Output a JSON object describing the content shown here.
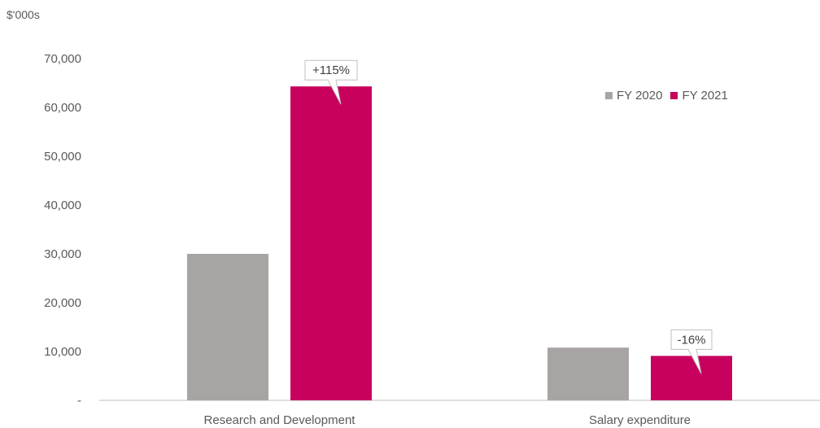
{
  "chart_data": {
    "type": "bar",
    "unit_label": "$'000s",
    "categories": [
      "Research and Development",
      "Salary expenditure"
    ],
    "series": [
      {
        "name": "FY 2020",
        "color": "#a8a4a4",
        "values": [
          30000,
          10800
        ]
      },
      {
        "name": "FY 2021",
        "color": "#c8005e",
        "values": [
          64300,
          9100
        ]
      }
    ],
    "yticks": [
      0,
      10000,
      20000,
      30000,
      40000,
      50000,
      60000,
      70000
    ],
    "ytick_labels": [
      "-",
      "10,000",
      "20,000",
      "30,000",
      "40,000",
      "50,000",
      "60,000",
      "70,000"
    ],
    "ylim": [
      0,
      70000
    ],
    "annotations": [
      {
        "category": "Research and Development",
        "series": "FY 2021",
        "text": "+115%"
      },
      {
        "category": "Salary expenditure",
        "series": "FY 2021",
        "text": "-16%"
      }
    ],
    "legend_position": "top-right",
    "grid": false
  }
}
